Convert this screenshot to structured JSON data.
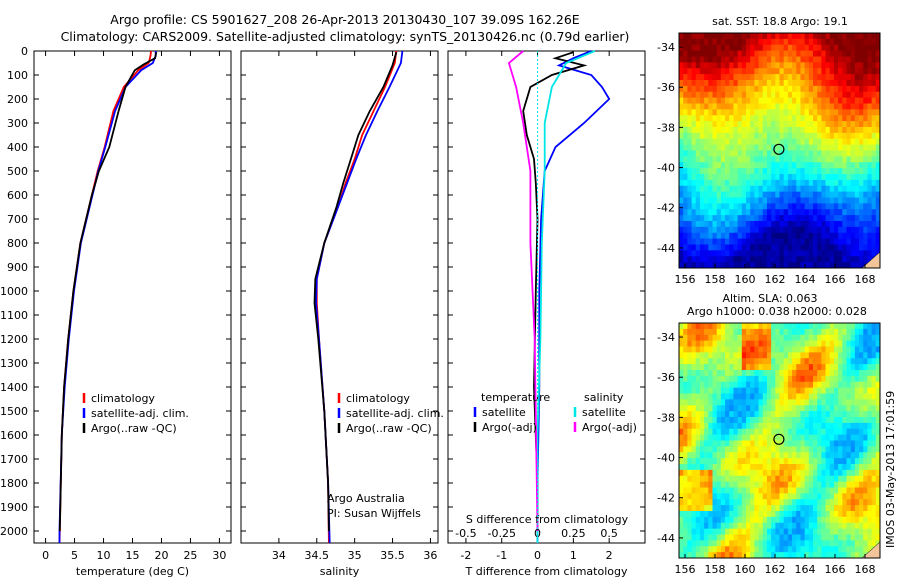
{
  "header": {
    "line1": "Argo profile: CS 5901627_208 26-Apr-2013 20130430_107 39.09S 162.26E",
    "line2": "Climatology: CARS2009. Satellite-adjusted climatology: synTS_20130426.nc (0.79d earlier)"
  },
  "colors": {
    "climatology": "#ff0000",
    "satellite": "#0000ff",
    "argo": "#000000",
    "sat_salinity": "#00e5e5",
    "argo_salinity": "#ff00ff"
  },
  "depth_axis": {
    "ylim": [
      0,
      2050
    ],
    "ticks": [
      "0",
      "100",
      "200",
      "300",
      "400",
      "500",
      "600",
      "700",
      "800",
      "900",
      "1000",
      "1100",
      "1200",
      "1300",
      "1400",
      "1500",
      "1600",
      "1700",
      "1800",
      "1900",
      "2000"
    ]
  },
  "chart_data": [
    {
      "type": "line",
      "id": "temperature",
      "xlabel": "temperature (deg C)",
      "xlim": [
        -2,
        32
      ],
      "xticks": [
        "0",
        "5",
        "10",
        "15",
        "20",
        "25",
        "30"
      ],
      "legend": [
        "climatology",
        "satellite-adj. clim.",
        "Argo(..raw -QC)"
      ],
      "series": [
        {
          "name": "climatology",
          "color": "#ff0000",
          "x": [
            18.2,
            18.1,
            17.8,
            16.0,
            13.5,
            11.7,
            10.2,
            9.0,
            8.0,
            6.0,
            4.8,
            3.9,
            3.2,
            2.8,
            2.45,
            2.4
          ],
          "y": [
            0,
            20,
            50,
            80,
            150,
            250,
            400,
            500,
            600,
            800,
            1000,
            1200,
            1400,
            1600,
            2000,
            2050
          ]
        },
        {
          "name": "satellite-adj. clim.",
          "color": "#0000ff",
          "x": [
            19.0,
            19.0,
            18.5,
            16.5,
            13.8,
            12.0,
            10.3,
            9.1,
            8.1,
            6.1,
            4.9,
            4.0,
            3.3,
            2.8,
            2.4,
            2.4
          ],
          "y": [
            0,
            20,
            50,
            80,
            150,
            250,
            400,
            500,
            600,
            800,
            1000,
            1200,
            1400,
            1600,
            2000,
            2050
          ]
        },
        {
          "name": "Argo(..raw -QC)",
          "color": "#000000",
          "x": [
            19.1,
            18.9,
            17.0,
            15.4,
            13.8,
            12.6,
            11.0,
            9.2,
            8.0,
            6.0,
            4.8,
            3.9,
            3.2,
            2.8,
            2.45
          ],
          "y": [
            5,
            30,
            55,
            80,
            150,
            250,
            400,
            500,
            600,
            800,
            1000,
            1200,
            1400,
            1600,
            2000
          ]
        }
      ]
    },
    {
      "type": "line",
      "id": "salinity",
      "xlabel": "salinity",
      "xlim": [
        33.5,
        36.1
      ],
      "xticks": [
        "34",
        "34.5",
        "35",
        "35.5",
        "36"
      ],
      "legend": [
        "climatology",
        "satellite-adj. clim.",
        "Argo(..raw -QC)"
      ],
      "annotation": [
        "Argo Australia",
        "PI: Susan Wijffels"
      ],
      "series": [
        {
          "name": "climatology",
          "color": "#ff0000",
          "x": [
            35.55,
            35.53,
            35.4,
            35.25,
            35.1,
            35.0,
            34.88,
            34.78,
            34.6,
            34.5,
            34.5,
            34.53,
            34.6,
            34.65,
            34.66
          ],
          "y": [
            0,
            50,
            150,
            250,
            350,
            450,
            550,
            650,
            800,
            950,
            1050,
            1200,
            1500,
            1800,
            2050
          ]
        },
        {
          "name": "satellite-adj. clim.",
          "color": "#0000ff",
          "x": [
            35.63,
            35.61,
            35.46,
            35.3,
            35.15,
            35.02,
            34.9,
            34.78,
            34.6,
            34.5,
            34.49,
            34.53,
            34.6,
            34.65,
            34.67
          ],
          "y": [
            0,
            50,
            150,
            250,
            350,
            450,
            550,
            650,
            800,
            950,
            1050,
            1200,
            1500,
            1800,
            2050
          ]
        },
        {
          "name": "Argo(..raw -QC)",
          "color": "#000000",
          "x": [
            35.55,
            35.5,
            35.38,
            35.2,
            35.05,
            34.95,
            34.85,
            34.76,
            34.6,
            34.48,
            34.47,
            34.52,
            34.6,
            34.65,
            34.66
          ],
          "y": [
            5,
            60,
            150,
            250,
            350,
            450,
            550,
            650,
            800,
            950,
            1050,
            1200,
            1500,
            1800,
            2000
          ]
        }
      ]
    },
    {
      "type": "line",
      "id": "difference",
      "xlabel": "T difference from climatology",
      "xlabel_top": "S difference from climatology",
      "xlim": [
        -2.5,
        3.0
      ],
      "xticks": [
        "-2",
        "-1",
        "0",
        "1",
        "2"
      ],
      "xticks_s": [
        "-0.5",
        "-0.25",
        "0",
        "0.25",
        "0.5"
      ],
      "legend_title_t": "temperature",
      "legend_title_s": "salinity",
      "legend_t": [
        "satellite",
        "Argo(-adj)"
      ],
      "legend_s": [
        "satellite",
        "Argo(-adj)"
      ],
      "series": [
        {
          "name": "T satellite",
          "color": "#0000ff",
          "x": [
            1.5,
            1.0,
            0.6,
            1.5,
            1.8,
            2.0,
            1.3,
            0.5,
            0.2,
            0.1,
            0.05,
            0.05,
            0.0,
            0.0
          ],
          "y": [
            0,
            30,
            60,
            100,
            150,
            200,
            300,
            400,
            500,
            700,
            1000,
            1400,
            1800,
            2050
          ]
        },
        {
          "name": "T Argo(-adj)",
          "color": "#000000",
          "x": [
            1.0,
            0.5,
            1.3,
            0.4,
            -0.2,
            -0.4,
            -0.3,
            -0.1,
            -0.05,
            0.0,
            -0.05,
            -0.1,
            0.0,
            0.0
          ],
          "y": [
            5,
            30,
            60,
            100,
            150,
            250,
            350,
            450,
            550,
            700,
            1000,
            1400,
            1800,
            2000
          ]
        },
        {
          "name": "S satellite",
          "color": "#00e5e5",
          "x": [
            0.4,
            0.2,
            0.1,
            0.05,
            0.05,
            0.03,
            0.02,
            0.0,
            0.0
          ],
          "y": [
            0,
            50,
            150,
            300,
            500,
            800,
            1200,
            1600,
            2050
          ]
        },
        {
          "name": "S Argo(-adj)",
          "color": "#ff00ff",
          "x": [
            -0.1,
            -0.2,
            -0.15,
            -0.1,
            -0.05,
            -0.05,
            -0.02,
            0.0
          ],
          "y": [
            0,
            50,
            150,
            300,
            500,
            800,
            1200,
            2000
          ]
        }
      ]
    },
    {
      "type": "heatmap",
      "id": "sst_map",
      "title": "sat. SST: 18.8 Argo: 19.1",
      "xlim": [
        155.6,
        169
      ],
      "ylim": [
        -45,
        -33.3
      ],
      "xticks": [
        "156",
        "158",
        "160",
        "162",
        "164",
        "166",
        "168"
      ],
      "yticks": [
        "-34",
        "-36",
        "-38",
        "-40",
        "-42",
        "-44"
      ],
      "marker": {
        "lon": 162.26,
        "lat": -39.09
      }
    },
    {
      "type": "heatmap",
      "id": "sla_map",
      "title_line1": "Altim. SLA: 0.063",
      "title_line2": "Argo h1000: 0.038 h2000: 0.028",
      "xlim": [
        155.6,
        169
      ],
      "ylim": [
        -45,
        -33.3
      ],
      "xticks": [
        "156",
        "158",
        "160",
        "162",
        "164",
        "166",
        "168"
      ],
      "yticks": [
        "-34",
        "-36",
        "-38",
        "-40",
        "-42",
        "-44"
      ],
      "marker": {
        "lon": 162.26,
        "lat": -39.09
      }
    }
  ],
  "watermark": "IMOS 03-May-2013 17:01:59"
}
